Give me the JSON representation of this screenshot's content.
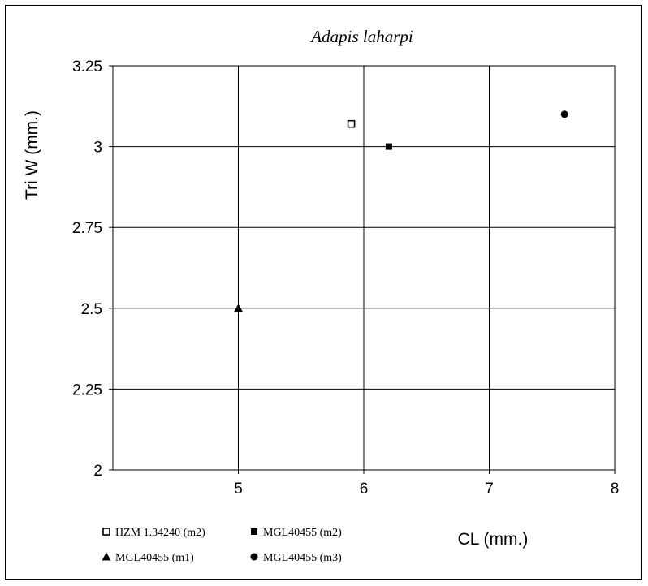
{
  "chart_data": {
    "type": "scatter",
    "title": "Adapis laharpi",
    "xlabel": "CL (mm.)",
    "ylabel": "Tri W (mm.)",
    "xlim": [
      4,
      8
    ],
    "ylim": [
      2,
      3.25
    ],
    "x_ticks": [
      {
        "value": 5,
        "label": "5"
      },
      {
        "value": 6,
        "label": "6"
      },
      {
        "value": 7,
        "label": "7"
      },
      {
        "value": 8,
        "label": "8"
      }
    ],
    "y_ticks": [
      {
        "value": 2,
        "label": "2"
      },
      {
        "value": 2.25,
        "label": "2.25"
      },
      {
        "value": 2.5,
        "label": "2.5"
      },
      {
        "value": 2.75,
        "label": "2.75"
      },
      {
        "value": 3,
        "label": "3"
      },
      {
        "value": 3.25,
        "label": "3.25"
      }
    ],
    "grid": true,
    "legend_position": "bottom-left",
    "series": [
      {
        "name": "HZM 1.34240 (m2)",
        "marker": "open-square",
        "color": "#000000",
        "points": [
          {
            "x": 5.9,
            "y": 3.07
          }
        ]
      },
      {
        "name": "MGL40455 (m2)",
        "marker": "filled-square",
        "color": "#000000",
        "points": [
          {
            "x": 6.2,
            "y": 3.0
          }
        ]
      },
      {
        "name": "MGL40455 (m1)",
        "marker": "filled-triangle",
        "color": "#000000",
        "points": [
          {
            "x": 5.0,
            "y": 2.5
          }
        ]
      },
      {
        "name": "MGL40455 (m3)",
        "marker": "filled-circle",
        "color": "#000000",
        "points": [
          {
            "x": 7.6,
            "y": 3.1
          }
        ]
      }
    ]
  }
}
